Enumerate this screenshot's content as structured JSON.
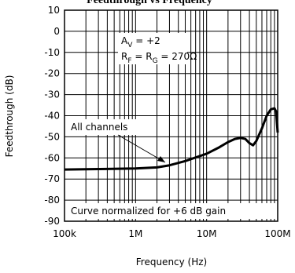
{
  "chart_data": {
    "type": "line",
    "title": "Feedthrough vs Frequency",
    "x_label": "Frequency (Hz)",
    "y_label": "Feedthrough (dB)",
    "x": [
      100000,
      300000,
      1000000,
      2000000,
      3000000,
      5000000,
      10000000,
      15000000,
      20000000,
      25000000,
      30000000,
      35000000,
      40000000,
      45000000,
      50000000,
      60000000,
      70000000,
      80000000,
      90000000,
      95000000,
      100000000
    ],
    "series": [
      {
        "name": "All channels",
        "color": "#000000",
        "values": [
          -65.5,
          -65.3,
          -65,
          -64.5,
          -63.5,
          -61.5,
          -58,
          -55,
          -52.5,
          -51,
          -50.5,
          -51,
          -53,
          -54,
          -52,
          -46,
          -40,
          -37,
          -36.5,
          -38,
          -48
        ]
      }
    ],
    "xlim": [
      100000,
      100000000
    ],
    "ylim": [
      -90,
      10
    ],
    "xscale": "log",
    "xticks": [
      {
        "value": 100000,
        "label": "100k"
      },
      {
        "value": 1000000,
        "label": "1M"
      },
      {
        "value": 10000000,
        "label": "10M"
      },
      {
        "value": 100000000,
        "label": "100M"
      }
    ],
    "yticks": [
      -90,
      -80,
      -70,
      -60,
      -50,
      -40,
      -30,
      -20,
      -10,
      0,
      10
    ],
    "grid": true,
    "gain": {
      "main": "A",
      "sub": "V",
      "rest": " = +2"
    },
    "resistors": {
      "a": "R",
      "a_sub": "F",
      "mid": " = R",
      "b_sub": "G",
      "rest": " = 270Ω"
    },
    "note": "Curve normalized for +6 dB gain"
  }
}
